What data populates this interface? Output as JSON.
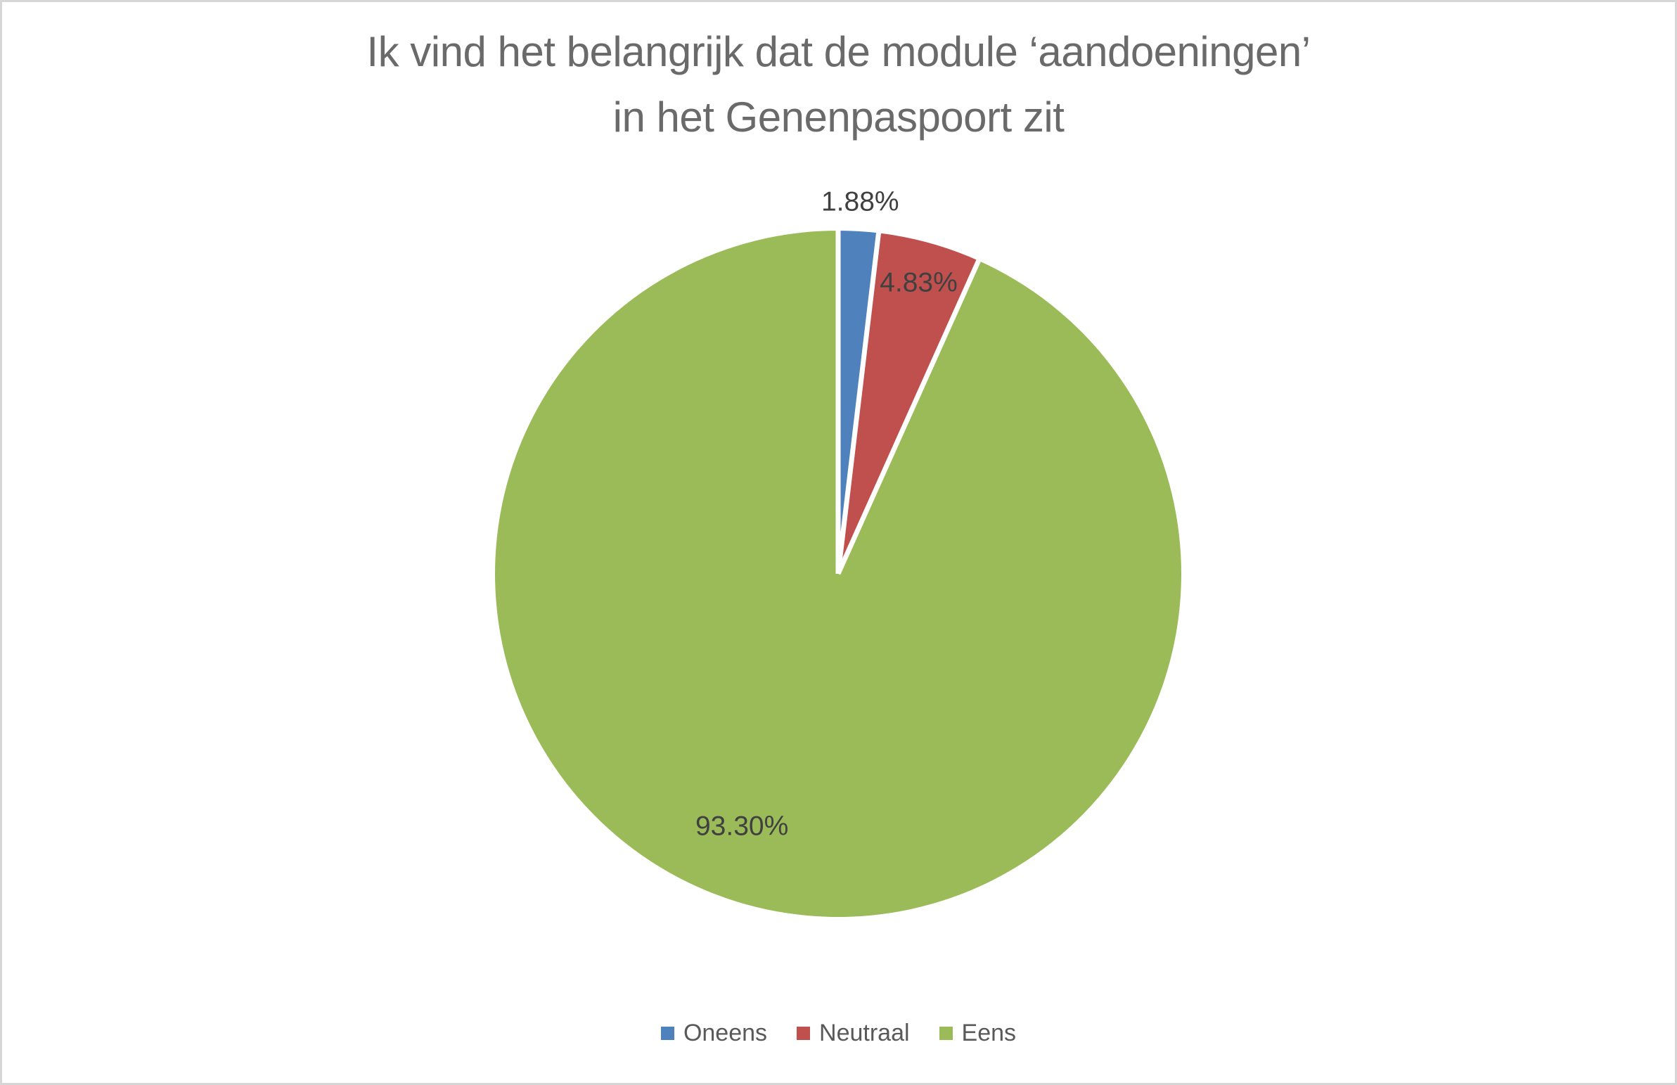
{
  "page": {
    "background_color": "#FFFFFF",
    "frame_border_color": "#D6D6D6"
  },
  "title": {
    "line1": "Ik vind het belangrijk dat de module ‘aandoeningen’",
    "line2": "in het Genenpaspoort zit"
  },
  "chart_data": {
    "type": "pie",
    "title": "Ik vind het belangrijk dat de module ‘aandoeningen’ in het Genenpaspoort zit",
    "start_angle_deg": 0,
    "direction": "clockwise",
    "legend_position": "bottom",
    "separator_color": "#FFFFFF",
    "slices": [
      {
        "label": "Oneens",
        "value": 1.88,
        "display": "1.88%",
        "color": "#4F81BD"
      },
      {
        "label": "Neutraal",
        "value": 4.83,
        "display": "4.83%",
        "color": "#C0504D"
      },
      {
        "label": "Eens",
        "value": 93.3,
        "display": "93.30%",
        "color": "#9BBB59"
      }
    ]
  }
}
